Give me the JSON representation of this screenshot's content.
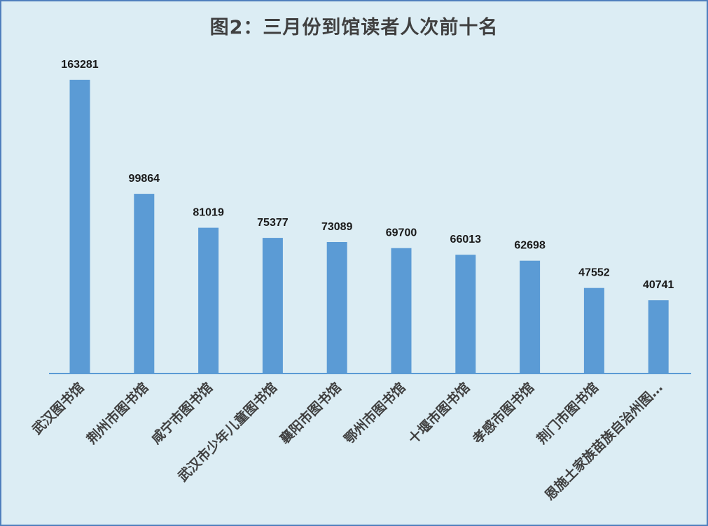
{
  "chart_data": {
    "type": "bar",
    "title": "图2：三月份到馆读者人次前十名",
    "categories": [
      "武汉图书馆",
      "荆州市图书馆",
      "咸宁市图书馆",
      "武汉市少年儿童图书馆",
      "襄阳市图书馆",
      "鄂州市图书馆",
      "十堰市图书馆",
      "孝感市图书馆",
      "荆门市图书馆",
      "恩施土家族苗族自治州图…"
    ],
    "values": [
      163281,
      99864,
      81019,
      75377,
      73089,
      69700,
      66013,
      62698,
      47552,
      40741
    ],
    "data_labels": [
      "163281",
      "99864",
      "81019",
      "75377",
      "73089",
      "69700",
      "66013",
      "62698",
      "47552",
      "40741"
    ],
    "xlabel": "",
    "ylabel": "",
    "ylim": [
      0,
      163281
    ],
    "grid": false,
    "legend": "none",
    "colors": {
      "bar": "#5b9bd5",
      "background": "#dcedf4",
      "border": "#4f7fbd",
      "axis": "#5b9bd5",
      "title": "#404040",
      "value_label": "#1a1a1a",
      "category_label": "#404040"
    }
  }
}
